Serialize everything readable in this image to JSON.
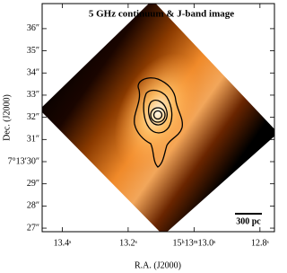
{
  "chart_data": {
    "type": "image",
    "title": "5 GHz continuum & J-band image",
    "xlabel": "R.A. (J2000)",
    "ylabel": "Dec. (J2000)",
    "xlim": [
      13.461,
      12.756
    ],
    "ylim": [
      26.84,
      37.13
    ],
    "xticks": [
      {
        "value": 13.4,
        "label": "13.4ˢ"
      },
      {
        "value": 13.2,
        "label": "13.2ˢ"
      },
      {
        "value": 13.0,
        "label": "15ʰ13ᵐ13.0ˢ"
      },
      {
        "value": 12.8,
        "label": "12.8ˢ"
      }
    ],
    "yticks": [
      {
        "value": 36,
        "label": "36″"
      },
      {
        "value": 35,
        "label": "35″"
      },
      {
        "value": 34,
        "label": "34″"
      },
      {
        "value": 33,
        "label": "33″"
      },
      {
        "value": 32,
        "label": "32″"
      },
      {
        "value": 31,
        "label": "31″"
      },
      {
        "value": 30,
        "label": "7°13′30″"
      },
      {
        "value": 29,
        "label": "29″"
      },
      {
        "value": 28,
        "label": "28″"
      },
      {
        "value": 27,
        "label": "27″"
      }
    ],
    "scale_bar_label": "300 pc"
  }
}
